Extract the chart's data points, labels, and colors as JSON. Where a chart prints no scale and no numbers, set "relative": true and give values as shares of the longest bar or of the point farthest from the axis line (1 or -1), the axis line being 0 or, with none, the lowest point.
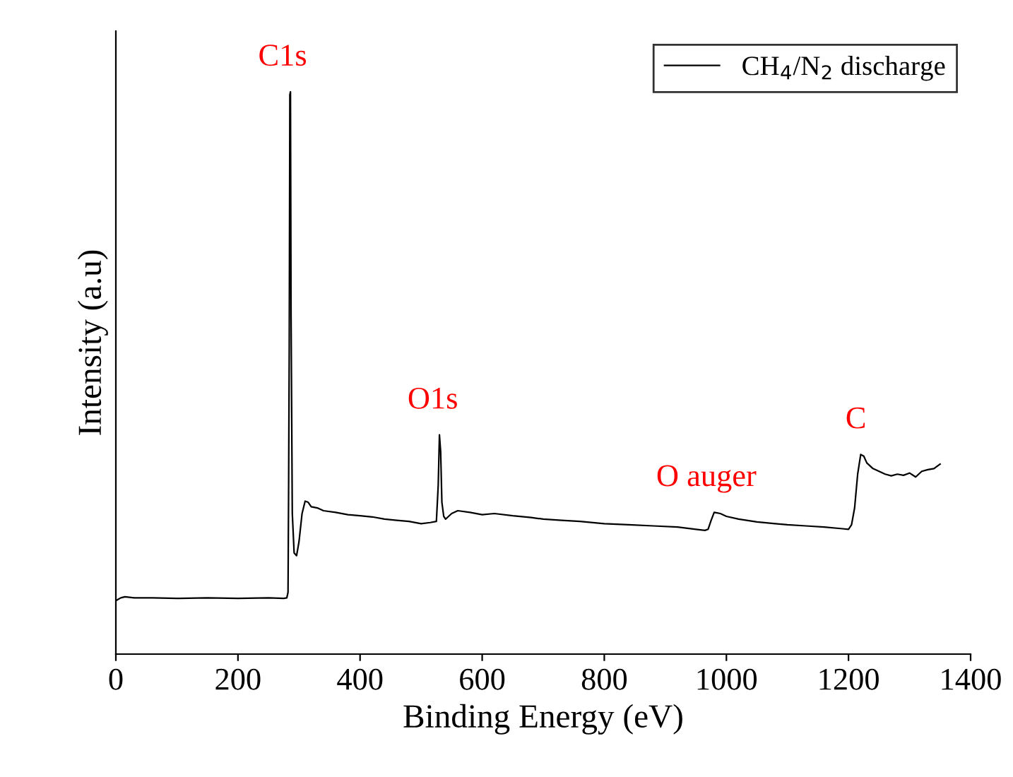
{
  "chart_data": {
    "type": "line",
    "relative": true,
    "xlabel": "Binding Energy (eV)",
    "ylabel": "Intensity (a.u)",
    "xlim": [
      0,
      1400
    ],
    "xticks": [
      0,
      200,
      400,
      600,
      800,
      1000,
      1200,
      1400
    ],
    "legend": "top right",
    "grid": false,
    "marker": "none",
    "line_style": "solid",
    "series": [
      {
        "name": "CH$_{4}$/N$_{2}$ discharge",
        "color": "#000000",
        "x": [
          0,
          8,
          15,
          30,
          60,
          100,
          150,
          200,
          250,
          275,
          280,
          282,
          283,
          284,
          285,
          286,
          287,
          289,
          292,
          296,
          300,
          305,
          310,
          315,
          320,
          330,
          340,
          360,
          380,
          400,
          420,
          440,
          460,
          480,
          500,
          515,
          525,
          528,
          530,
          532,
          534,
          537,
          540,
          550,
          560,
          580,
          600,
          620,
          650,
          680,
          700,
          730,
          760,
          800,
          840,
          880,
          920,
          950,
          965,
          970,
          975,
          980,
          990,
          1000,
          1020,
          1050,
          1080,
          1100,
          1130,
          1160,
          1190,
          1200,
          1205,
          1210,
          1215,
          1220,
          1225,
          1230,
          1235,
          1240,
          1250,
          1260,
          1270,
          1280,
          1290,
          1300,
          1310,
          1320,
          1330,
          1340,
          1350
        ],
        "values": [
          0.095,
          0.1,
          0.102,
          0.1,
          0.1,
          0.099,
          0.1,
          0.099,
          0.1,
          0.099,
          0.1,
          0.11,
          0.3,
          0.55,
          0.995,
          1.0,
          0.6,
          0.25,
          0.18,
          0.175,
          0.2,
          0.25,
          0.272,
          0.27,
          0.262,
          0.26,
          0.255,
          0.252,
          0.248,
          0.246,
          0.244,
          0.24,
          0.238,
          0.236,
          0.232,
          0.234,
          0.236,
          0.3,
          0.39,
          0.36,
          0.27,
          0.245,
          0.24,
          0.25,
          0.255,
          0.252,
          0.248,
          0.25,
          0.246,
          0.243,
          0.24,
          0.238,
          0.236,
          0.232,
          0.23,
          0.228,
          0.226,
          0.222,
          0.22,
          0.222,
          0.238,
          0.252,
          0.25,
          0.245,
          0.24,
          0.235,
          0.232,
          0.23,
          0.228,
          0.226,
          0.223,
          0.222,
          0.23,
          0.26,
          0.32,
          0.355,
          0.352,
          0.34,
          0.335,
          0.33,
          0.325,
          0.32,
          0.317,
          0.32,
          0.318,
          0.322,
          0.315,
          0.325,
          0.328,
          0.33,
          0.338
        ]
      }
    ],
    "annotations": [
      {
        "text": "C1s",
        "x": 286,
        "y": 1.0
      },
      {
        "text": "O1s",
        "x": 532,
        "y": 0.39
      },
      {
        "text": "O auger",
        "x": 980,
        "y": 0.252
      },
      {
        "text": "C",
        "x": 1225,
        "y": 0.355
      }
    ]
  }
}
